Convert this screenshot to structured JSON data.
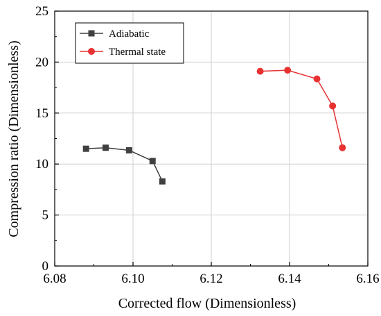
{
  "chart_data": {
    "type": "line",
    "title": "",
    "xlabel": "Corrected flow (Dimensionless)",
    "ylabel": "Compression ratio (Dimensionless)",
    "xlim": [
      6.08,
      6.16
    ],
    "ylim": [
      0,
      25
    ],
    "xticks": [
      "6.08",
      "6.10",
      "6.12",
      "6.14",
      "6.16"
    ],
    "yticks": [
      "0",
      "5",
      "10",
      "15",
      "20",
      "25"
    ],
    "grid": true,
    "legend_position": "top-left",
    "series": [
      {
        "name": "Adiabatic",
        "color": "#404040",
        "marker": "square",
        "x": [
          6.088,
          6.093,
          6.099,
          6.105,
          6.1075
        ],
        "y": [
          11.5,
          11.6,
          11.35,
          10.3,
          8.3
        ]
      },
      {
        "name": "Thermal state",
        "color": "#e83232",
        "marker": "circle",
        "x": [
          6.1325,
          6.1395,
          6.147,
          6.151,
          6.1535
        ],
        "y": [
          19.1,
          19.2,
          18.35,
          15.7,
          11.6
        ]
      }
    ]
  }
}
